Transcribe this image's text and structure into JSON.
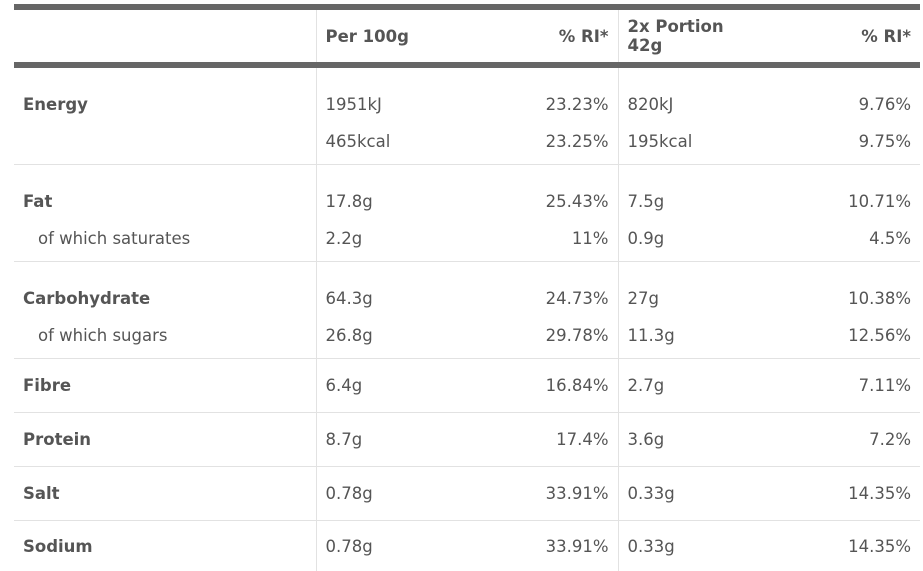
{
  "header": {
    "label": "",
    "per_100g": "Per 100g",
    "ri1": "% RI*",
    "portion": "2x Portion 42g",
    "ri2": "% RI*"
  },
  "rows": {
    "energy_kj": {
      "label": "Energy",
      "per100": "1951kJ",
      "ri1": "23.23%",
      "portion": "820kJ",
      "ri2": "9.76%"
    },
    "energy_kcal": {
      "label": "",
      "per100": "465kcal",
      "ri1": "23.25%",
      "portion": "195kcal",
      "ri2": "9.75%"
    },
    "fat": {
      "label": "Fat",
      "per100": "17.8g",
      "ri1": "25.43%",
      "portion": "7.5g",
      "ri2": "10.71%"
    },
    "saturates": {
      "label": "of which saturates",
      "per100": "2.2g",
      "ri1": "11%",
      "portion": "0.9g",
      "ri2": "4.5%"
    },
    "carbohydrate": {
      "label": "Carbohydrate",
      "per100": "64.3g",
      "ri1": "24.73%",
      "portion": "27g",
      "ri2": "10.38%"
    },
    "sugars": {
      "label": "of which sugars",
      "per100": "26.8g",
      "ri1": "29.78%",
      "portion": "11.3g",
      "ri2": "12.56%"
    },
    "fibre": {
      "label": "Fibre",
      "per100": "6.4g",
      "ri1": "16.84%",
      "portion": "2.7g",
      "ri2": "7.11%"
    },
    "protein": {
      "label": "Protein",
      "per100": "8.7g",
      "ri1": "17.4%",
      "portion": "3.6g",
      "ri2": "7.2%"
    },
    "salt": {
      "label": "Salt",
      "per100": "0.78g",
      "ri1": "33.91%",
      "portion": "0.33g",
      "ri2": "14.35%"
    },
    "sodium": {
      "label": "Sodium",
      "per100": "0.78g",
      "ri1": "33.91%",
      "portion": "0.33g",
      "ri2": "14.35%"
    }
  }
}
